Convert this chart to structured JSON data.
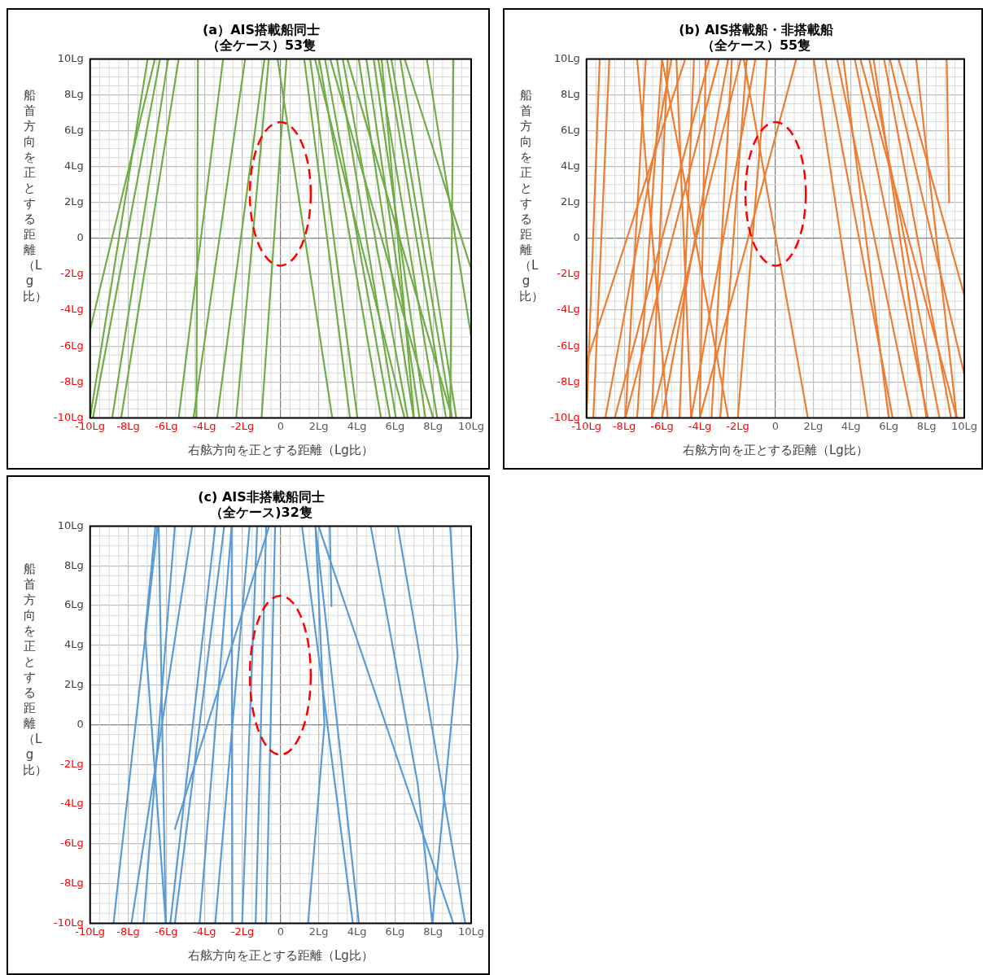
{
  "chart_data": [
    {
      "type": "line",
      "title": "(a）AIS搭載船同士（全ケース）53隻",
      "xlabel": "右舷方向を正とする距離（Lg比）",
      "ylabel": "船首方向を正とする距離（Lg比）",
      "xlim": [
        -10,
        10
      ],
      "ylim": [
        -10,
        10
      ],
      "xticks": [
        {
          "value": -10,
          "label": "-10Lg"
        },
        {
          "value": -8,
          "label": "-8Lg"
        },
        {
          "value": -6,
          "label": "-6Lg"
        },
        {
          "value": -4,
          "label": "-4Lg"
        },
        {
          "value": -2,
          "label": "-2Lg"
        },
        {
          "value": 0,
          "label": "0"
        },
        {
          "value": 2,
          "label": "2Lg"
        },
        {
          "value": 4,
          "label": "4Lg"
        },
        {
          "value": 6,
          "label": "6Lg"
        },
        {
          "value": 8,
          "label": "8Lg"
        },
        {
          "value": 10,
          "label": "10Lg"
        }
      ],
      "yticks": [
        {
          "value": -10,
          "label": "-10Lg"
        },
        {
          "value": -8,
          "label": "-8Lg"
        },
        {
          "value": -6,
          "label": "-6Lg"
        },
        {
          "value": -4,
          "label": "-4Lg"
        },
        {
          "value": -2,
          "label": "-2Lg"
        },
        {
          "value": 0,
          "label": "0"
        },
        {
          "value": 2,
          "label": "2Lg"
        },
        {
          "value": 4,
          "label": "4Lg"
        },
        {
          "value": 6,
          "label": "6Lg"
        },
        {
          "value": 8,
          "label": "8Lg"
        },
        {
          "value": 10,
          "label": "10Lg"
        }
      ],
      "grid": true,
      "series": [
        {
          "color": "#70ad47",
          "x": [
            -6.98,
            -10
          ],
          "values": [
            10,
            -10
          ]
        },
        {
          "color": "#70ad47",
          "x": [
            -6.33,
            -9.85
          ],
          "values": [
            10,
            -10
          ]
        },
        {
          "color": "#70ad47",
          "x": [
            -5.9,
            -8.84
          ],
          "values": [
            10,
            -10
          ]
        },
        {
          "color": "#70ad47",
          "x": [
            -5.35,
            -8.37
          ],
          "values": [
            10,
            -10
          ]
        },
        {
          "color": "#70ad47",
          "x": [
            -4.34,
            -4.42
          ],
          "values": [
            10,
            -10
          ]
        },
        {
          "color": "#70ad47",
          "x": [
            -3.02,
            -5.35
          ],
          "values": [
            10,
            -10
          ]
        },
        {
          "color": "#70ad47",
          "x": [
            -1.86,
            -4.57
          ],
          "values": [
            10,
            -10
          ]
        },
        {
          "color": "#70ad47",
          "x": [
            -0.85,
            -3.33
          ],
          "values": [
            10,
            -10
          ]
        },
        {
          "color": "#70ad47",
          "x": [
            -0.62,
            -2.33
          ],
          "values": [
            10,
            -10
          ]
        },
        {
          "color": "#70ad47",
          "x": [
            0.31,
            -1.0
          ],
          "values": [
            10,
            -10
          ]
        },
        {
          "color": "#70ad47",
          "x": [
            -0.16,
            2.71
          ],
          "values": [
            10,
            -10
          ]
        },
        {
          "color": "#70ad47",
          "x": [
            1.24,
            3.64
          ],
          "values": [
            10,
            -10
          ]
        },
        {
          "color": "#70ad47",
          "x": [
            1.55,
            4.03
          ],
          "values": [
            10,
            -10
          ]
        },
        {
          "color": "#70ad47",
          "x": [
            2.02,
            5.27
          ],
          "values": [
            10,
            -10
          ]
        },
        {
          "color": "#70ad47",
          "x": [
            2.33,
            5.74
          ],
          "values": [
            10,
            -10
          ]
        },
        {
          "color": "#70ad47",
          "x": [
            2.95,
            6.05
          ],
          "values": [
            10,
            -10
          ]
        },
        {
          "color": "#70ad47",
          "x": [
            3.26,
            6.67
          ],
          "values": [
            10,
            -10
          ]
        },
        {
          "color": "#70ad47",
          "x": [
            4.1,
            6.98
          ],
          "values": [
            10,
            -10
          ]
        },
        {
          "color": "#70ad47",
          "x": [
            4.5,
            7.29
          ],
          "values": [
            10,
            -10
          ]
        },
        {
          "color": "#70ad47",
          "x": [
            4.88,
            7.6
          ],
          "values": [
            10,
            -10
          ]
        },
        {
          "color": "#70ad47",
          "x": [
            5.12,
            8.22
          ],
          "values": [
            10,
            -10
          ]
        },
        {
          "color": "#70ad47",
          "x": [
            5.58,
            8.68
          ],
          "values": [
            10,
            -10
          ]
        },
        {
          "color": "#70ad47",
          "x": [
            5.81,
            8.99
          ],
          "values": [
            10,
            -10
          ]
        },
        {
          "color": "#70ad47",
          "x": [
            6.28,
            9.22
          ],
          "values": [
            10,
            -10
          ]
        },
        {
          "color": "#70ad47",
          "x": [
            9.07,
            8.9
          ],
          "values": [
            10,
            -10
          ]
        },
        {
          "color": "#70ad47",
          "x": [
            2.6,
            8.0
          ],
          "values": [
            10,
            -10
          ]
        },
        {
          "color": "#70ad47",
          "x": [
            1.8,
            6.5
          ],
          "values": [
            10,
            -10
          ]
        },
        {
          "color": "#70ad47",
          "x": [
            3.5,
            9.0
          ],
          "values": [
            10,
            -10
          ]
        },
        {
          "color": "#70ad47",
          "x": [
            5.3,
            7.0
          ],
          "values": [
            10,
            -10
          ]
        },
        {
          "color": "#70ad47",
          "x": [
            6.51,
            10
          ],
          "values": [
            10,
            -1.7
          ]
        },
        {
          "color": "#70ad47",
          "x": [
            7.67,
            10
          ],
          "values": [
            10,
            -5.45
          ]
        },
        {
          "color": "#70ad47",
          "x": [
            -6.6,
            -10
          ],
          "values": [
            10,
            -5.1
          ]
        }
      ]
    },
    {
      "type": "line",
      "title": "(b) AIS搭載船・非搭載船（全ケース）55隻",
      "xlabel": "右舷方向を正とする距離（Lg比）",
      "ylabel": "船首方向を正とする距離（Lg比）",
      "xlim": [
        -10,
        10
      ],
      "ylim": [
        -10,
        10
      ],
      "xticks": [
        {
          "value": -10,
          "label": "-10Lg"
        },
        {
          "value": -8,
          "label": "-8Lg"
        },
        {
          "value": -6,
          "label": "-6Lg"
        },
        {
          "value": -4,
          "label": "-4Lg"
        },
        {
          "value": -2,
          "label": "-2Lg"
        },
        {
          "value": 0,
          "label": "0"
        },
        {
          "value": 2,
          "label": "2Lg"
        },
        {
          "value": 4,
          "label": "4Lg"
        },
        {
          "value": 6,
          "label": "6Lg"
        },
        {
          "value": 8,
          "label": "8Lg"
        },
        {
          "value": 10,
          "label": "10Lg"
        }
      ],
      "yticks": [
        {
          "value": -10,
          "label": "-10Lg"
        },
        {
          "value": -8,
          "label": "-8Lg"
        },
        {
          "value": -6,
          "label": "-6Lg"
        },
        {
          "value": -4,
          "label": "-4Lg"
        },
        {
          "value": -2,
          "label": "-2Lg"
        },
        {
          "value": 0,
          "label": "0"
        },
        {
          "value": 2,
          "label": "2Lg"
        },
        {
          "value": 4,
          "label": "4Lg"
        },
        {
          "value": 6,
          "label": "6Lg"
        },
        {
          "value": 8,
          "label": "8Lg"
        },
        {
          "value": 10,
          "label": "10Lg"
        }
      ],
      "grid": true,
      "series": [
        {
          "color": "#ed7d31",
          "x": [
            -8.79,
            -9.64
          ],
          "values": [
            10,
            -10
          ]
        },
        {
          "color": "#ed7d31",
          "x": [
            -7.32,
            -5.7
          ],
          "values": [
            10,
            -10
          ]
        },
        {
          "color": "#ed7d31",
          "x": [
            -6.86,
            -7.94
          ],
          "values": [
            10,
            -10
          ]
        },
        {
          "color": "#ed7d31",
          "x": [
            -6.0,
            -7.32
          ],
          "values": [
            10,
            -10
          ]
        },
        {
          "color": "#ed7d31",
          "x": [
            -5.7,
            -6.55
          ],
          "values": [
            10,
            -10
          ]
        },
        {
          "color": "#ed7d31",
          "x": [
            -5.24,
            -4.46
          ],
          "values": [
            10,
            -10
          ]
        },
        {
          "color": "#ed7d31",
          "x": [
            -4.31,
            -5.08
          ],
          "values": [
            10,
            -10
          ]
        },
        {
          "color": "#ed7d31",
          "x": [
            -3.69,
            -4.0
          ],
          "values": [
            10,
            -10
          ]
        },
        {
          "color": "#ed7d31",
          "x": [
            -2.99,
            -7.94
          ],
          "values": [
            10,
            -10
          ]
        },
        {
          "color": "#ed7d31",
          "x": [
            -2.3,
            -3.38
          ],
          "values": [
            10,
            -10
          ]
        },
        {
          "color": "#ed7d31",
          "x": [
            -1.83,
            -6.55
          ],
          "values": [
            10,
            -10
          ]
        },
        {
          "color": "#ed7d31",
          "x": [
            -1.52,
            -2.92
          ],
          "values": [
            10,
            -10
          ]
        },
        {
          "color": "#ed7d31",
          "x": [
            -1.06,
            -4.46
          ],
          "values": [
            10,
            -10
          ]
        },
        {
          "color": "#ed7d31",
          "x": [
            -0.44,
            -1.99
          ],
          "values": [
            10,
            -10
          ]
        },
        {
          "color": "#ed7d31",
          "x": [
            1.11,
            -4.0
          ],
          "values": [
            10,
            -10
          ]
        },
        {
          "color": "#ed7d31",
          "x": [
            -1.68,
            1.72
          ],
          "values": [
            10,
            -10
          ]
        },
        {
          "color": "#ed7d31",
          "x": [
            2.03,
            4.9
          ],
          "values": [
            10,
            -10
          ]
        },
        {
          "color": "#ed7d31",
          "x": [
            2.65,
            6.21
          ],
          "values": [
            10,
            -10
          ]
        },
        {
          "color": "#ed7d31",
          "x": [
            3.27,
            7.22
          ],
          "values": [
            10,
            -10
          ]
        },
        {
          "color": "#ed7d31",
          "x": [
            4.2,
            8.07
          ],
          "values": [
            10,
            -10
          ]
        },
        {
          "color": "#ed7d31",
          "x": [
            4.97,
            8.69
          ],
          "values": [
            10,
            -10
          ]
        },
        {
          "color": "#ed7d31",
          "x": [
            5.75,
            9.3
          ],
          "values": [
            10,
            -10
          ]
        },
        {
          "color": "#ed7d31",
          "x": [
            7.45,
            9.6
          ],
          "values": [
            10,
            -10
          ]
        },
        {
          "color": "#ed7d31",
          "x": [
            -9.3,
            -10
          ],
          "values": [
            10,
            -10
          ]
        },
        {
          "color": "#ed7d31",
          "x": [
            -6.0,
            -2.5
          ],
          "values": [
            10,
            -10
          ]
        },
        {
          "color": "#ed7d31",
          "x": [
            -5.5,
            -9.0
          ],
          "values": [
            10,
            -10
          ]
        },
        {
          "color": "#ed7d31",
          "x": [
            -3.5,
            -8.5
          ],
          "values": [
            10,
            -10
          ]
        },
        {
          "color": "#ed7d31",
          "x": [
            -2.5,
            -6.0
          ],
          "values": [
            10,
            -10
          ]
        },
        {
          "color": "#ed7d31",
          "x": [
            3.6,
            6.0
          ],
          "values": [
            10,
            -10
          ]
        },
        {
          "color": "#ed7d31",
          "x": [
            4.5,
            9.6
          ],
          "values": [
            10,
            -10
          ]
        },
        {
          "color": "#ed7d31",
          "x": [
            5.2,
            8.0
          ],
          "values": [
            10,
            -10
          ]
        },
        {
          "color": "#ed7d31",
          "x": [
            -4.77,
            -10
          ],
          "values": [
            10,
            -6.93
          ]
        },
        {
          "color": "#ed7d31",
          "x": [
            6.06,
            10
          ],
          "values": [
            10,
            -7.58
          ]
        },
        {
          "color": "#ed7d31",
          "x": [
            6.52,
            10
          ],
          "values": [
            10,
            -3.17
          ]
        },
        {
          "color": "#ed7d31",
          "x": [
            9.07,
            9.2
          ],
          "values": [
            10,
            2.0
          ]
        }
      ]
    },
    {
      "type": "line",
      "title": "(c) AIS非搭載船同士（全ケース)32隻",
      "xlabel": "右舷方向を正とする距離（Lg比）",
      "ylabel": "船首方向を正とする距離（Lg比）",
      "xlim": [
        -10,
        10
      ],
      "ylim": [
        -10,
        10
      ],
      "xticks": [
        {
          "value": -10,
          "label": "-10Lg"
        },
        {
          "value": -8,
          "label": "-8Lg"
        },
        {
          "value": -6,
          "label": "-6Lg"
        },
        {
          "value": -4,
          "label": "-4Lg"
        },
        {
          "value": -2,
          "label": "-2Lg"
        },
        {
          "value": 0,
          "label": "0"
        },
        {
          "value": 2,
          "label": "2Lg"
        },
        {
          "value": 4,
          "label": "4Lg"
        },
        {
          "value": 6,
          "label": "6Lg"
        },
        {
          "value": 8,
          "label": "8Lg"
        },
        {
          "value": 10,
          "label": "10Lg"
        }
      ],
      "yticks": [
        {
          "value": -10,
          "label": "-10Lg"
        },
        {
          "value": -8,
          "label": "-8Lg"
        },
        {
          "value": -6,
          "label": "-6Lg"
        },
        {
          "value": -4,
          "label": "-4Lg"
        },
        {
          "value": -2,
          "label": "-2Lg"
        },
        {
          "value": 0,
          "label": "0"
        },
        {
          "value": 2,
          "label": "2Lg"
        },
        {
          "value": 4,
          "label": "4Lg"
        },
        {
          "value": 6,
          "label": "6Lg"
        },
        {
          "value": 8,
          "label": "8Lg"
        },
        {
          "value": 10,
          "label": "10Lg"
        }
      ],
      "grid": true,
      "series": [
        {
          "color": "#5b9bd5",
          "x": [
            -6.57,
            -7.12,
            -6.03
          ],
          "values": [
            10,
            4.6,
            -10
          ]
        },
        {
          "color": "#5b9bd5",
          "x": [
            -6.46,
            -8.77
          ],
          "values": [
            10,
            -10
          ]
        },
        {
          "color": "#5b9bd5",
          "x": [
            -5.55,
            -7.2
          ],
          "values": [
            10,
            -10
          ]
        },
        {
          "color": "#5b9bd5",
          "x": [
            -4.64,
            -7.83
          ],
          "values": [
            10,
            -10
          ]
        },
        {
          "color": "#5b9bd5",
          "x": [
            -3.43,
            -5.79
          ],
          "values": [
            10,
            -10
          ]
        },
        {
          "color": "#5b9bd5",
          "x": [
            -2.96,
            -5.55
          ],
          "values": [
            10,
            -10
          ]
        },
        {
          "color": "#5b9bd5",
          "x": [
            -2.57,
            -4.25
          ],
          "values": [
            10,
            -10
          ]
        },
        {
          "color": "#5b9bd5",
          "x": [
            -2.57,
            -2.54
          ],
          "values": [
            10,
            -10
          ]
        },
        {
          "color": "#5b9bd5",
          "x": [
            -1.63,
            -3.43
          ],
          "values": [
            10,
            -10
          ]
        },
        {
          "color": "#5b9bd5",
          "x": [
            -1.23,
            -2.02
          ],
          "values": [
            10,
            -10
          ]
        },
        {
          "color": "#5b9bd5",
          "x": [
            -0.76,
            -1.31
          ],
          "values": [
            10,
            -10
          ]
        },
        {
          "color": "#5b9bd5",
          "x": [
            -0.29,
            -0.76
          ],
          "values": [
            10,
            -10
          ]
        },
        {
          "color": "#5b9bd5",
          "x": [
            1.12,
            3.79
          ],
          "values": [
            10,
            -10
          ]
        },
        {
          "color": "#5b9bd5",
          "x": [
            1.99,
            9.06
          ],
          "values": [
            10,
            -10
          ]
        },
        {
          "color": "#5b9bd5",
          "x": [
            -6.4,
            -6.03
          ],
          "values": [
            10,
            -10
          ]
        },
        {
          "color": "#5b9bd5",
          "x": [
            -0.6,
            -5.55
          ],
          "values": [
            10,
            -5.26
          ]
        },
        {
          "color": "#5b9bd5",
          "x": [
            2.58,
            2.67
          ],
          "values": [
            10,
            5.96
          ]
        },
        {
          "color": "#5b9bd5",
          "x": [
            1.83,
            2.3,
            1.44
          ],
          "values": [
            10,
            0,
            -10
          ]
        },
        {
          "color": "#5b9bd5",
          "x": [
            4.73,
            7.2,
            7.96
          ],
          "values": [
            10,
            -3,
            -10
          ]
        },
        {
          "color": "#5b9bd5",
          "x": [
            6.15,
            9.69
          ],
          "values": [
            10,
            -10
          ]
        },
        {
          "color": "#5b9bd5",
          "x": [
            8.9,
            9.29,
            7.96
          ],
          "values": [
            10,
            3.4,
            -10
          ]
        },
        {
          "color": "#5b9bd5",
          "x": [
            1.83,
            4.11
          ],
          "values": [
            10,
            -10
          ]
        }
      ]
    }
  ]
}
